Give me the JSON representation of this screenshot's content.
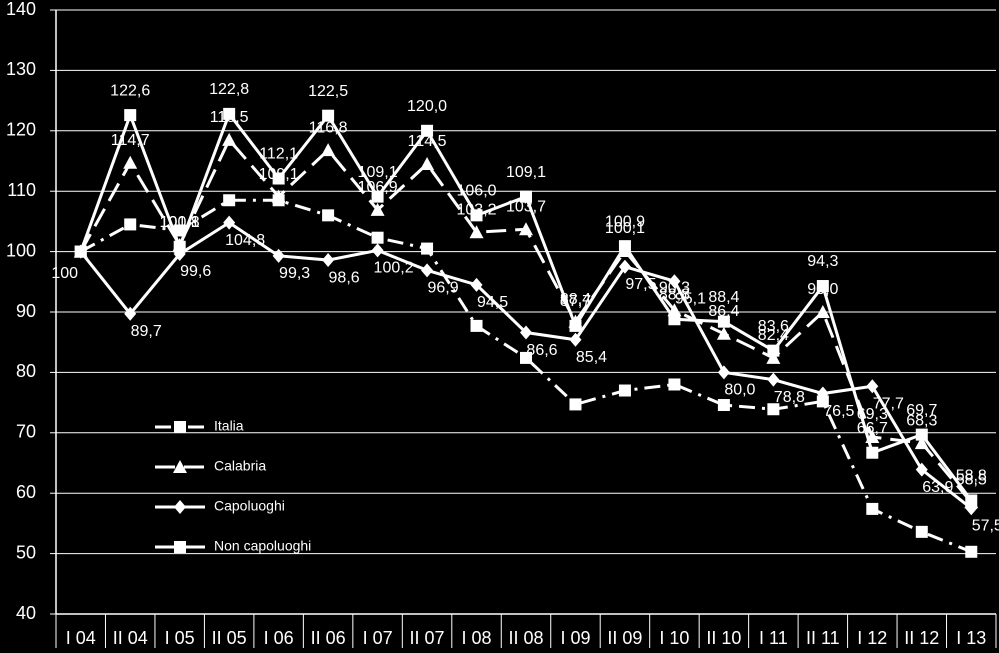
{
  "chart_data": {
    "type": "line",
    "categories": [
      "I  04",
      "II  04",
      "I  05",
      "II  05",
      "I  06",
      "II  06",
      "I  07",
      "II  07",
      "I  08",
      "II  08",
      "I  09",
      "II  09",
      "I  10",
      "II  10",
      "I  11",
      "II  11",
      "I  12",
      "II  12",
      "I  13"
    ],
    "ylim": [
      40,
      140
    ],
    "yticks": [
      40,
      50,
      60,
      70,
      80,
      90,
      100,
      110,
      120,
      130,
      140
    ],
    "grid": true,
    "series": [
      {
        "name": "Italia",
        "color": "#ffffff",
        "marker": "square",
        "line_style": "dashdot",
        "values": [
          100,
          104.5,
          103.5,
          108.5,
          108.5,
          106.0,
          102.3,
          100.5,
          87.7,
          82.4,
          74.7,
          77.0,
          78.0,
          74.6,
          73.9,
          75.2,
          57.4,
          53.6,
          50.3
        ],
        "value_labels": [
          "100",
          null,
          null,
          null,
          null,
          null,
          null,
          null,
          null,
          null,
          null,
          null,
          null,
          null,
          null,
          null,
          null,
          null,
          null
        ]
      },
      {
        "name": "Calabria",
        "color": "#ffffff",
        "marker": "triangle",
        "line_style": "dashed",
        "values": [
          100,
          114.7,
          101.1,
          118.5,
          109.1,
          116.8,
          106.9,
          114.5,
          103.2,
          103.7,
          88.4,
          100.1,
          90.3,
          86.4,
          82.4,
          90.0,
          69.3,
          68.3,
          58.5
        ],
        "value_labels": [
          null,
          "114,7",
          "101,1",
          "118,5",
          "109,1",
          "116,8",
          "106,9",
          "114,5",
          "103,2",
          "103,7",
          "88,4",
          "100,1",
          "90,3",
          "86,4",
          "82,4",
          "90,0",
          "69,3",
          "68,3",
          "58,5"
        ]
      },
      {
        "name": "Capoluoghi",
        "color": "#ffffff",
        "marker": "diamond",
        "line_style": "solid",
        "values": [
          100,
          89.7,
          99.6,
          104.8,
          99.3,
          98.6,
          100.2,
          96.9,
          94.5,
          86.6,
          85.4,
          97.5,
          95.1,
          80.0,
          78.8,
          76.5,
          77.7,
          63.9,
          57.5
        ],
        "value_labels": [
          null,
          "89,7",
          "99,6",
          "104,8",
          "99,3",
          "98,6",
          "100,2",
          "96,9",
          "94,5",
          "86,6",
          "85,4",
          "97,5",
          "95,1",
          "80,0",
          "78,8",
          "76,5",
          "77,7",
          "63,9",
          "57,5"
        ]
      },
      {
        "name": "Non capoluoghi",
        "color": "#ffffff",
        "marker": "square",
        "line_style": "solid",
        "values": [
          100,
          122.6,
          100.8,
          122.8,
          112.1,
          122.5,
          109.1,
          120.0,
          106.0,
          109.1,
          87.7,
          100.9,
          88.8,
          88.4,
          83.6,
          94.3,
          66.7,
          69.7,
          58.8
        ],
        "value_labels": [
          null,
          "122,6",
          "100,8",
          "122,8",
          "112,1",
          "122,5",
          "109,1",
          "120,0",
          "106,0",
          "109,1",
          "87,7",
          "100,9",
          "88,8",
          "88,4",
          "83,6",
          "94,3",
          "66,7",
          "69,7",
          "58,8"
        ]
      }
    ]
  }
}
